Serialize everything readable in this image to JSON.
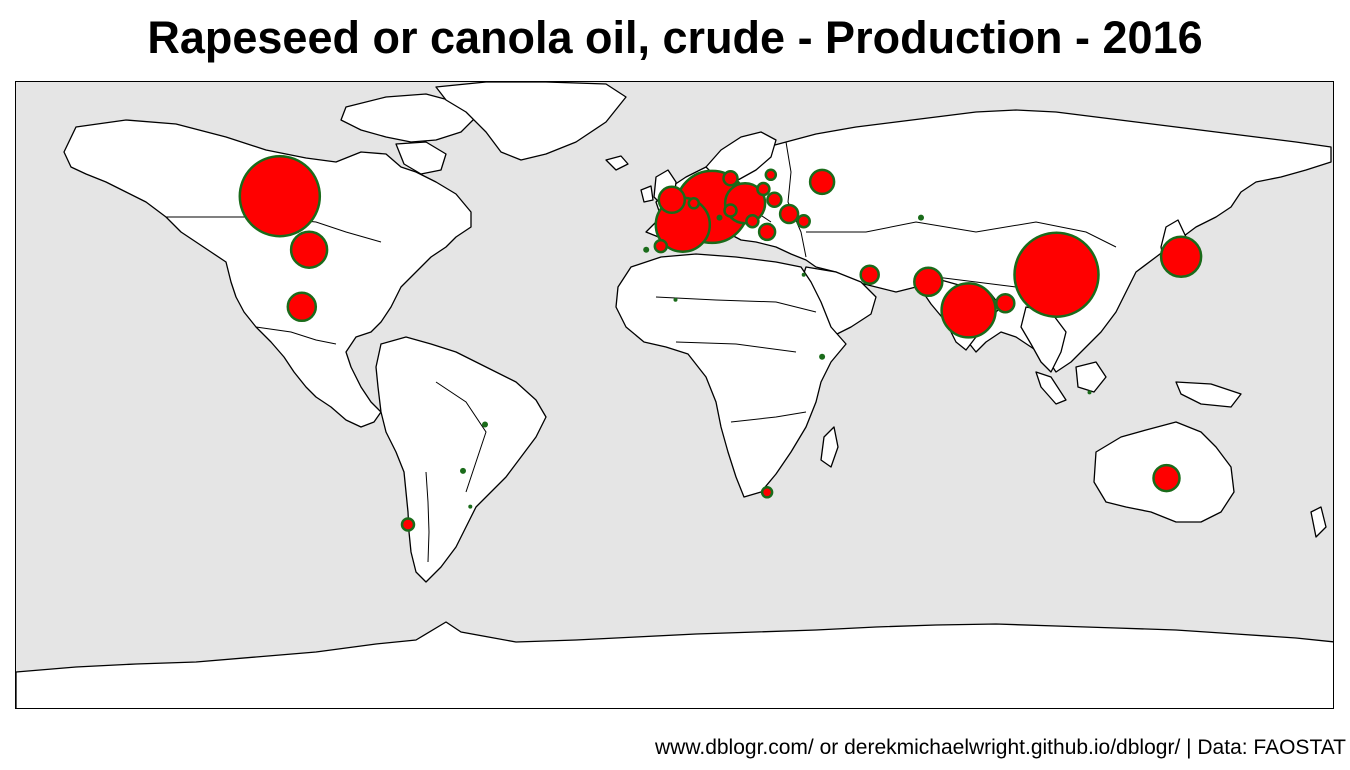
{
  "title": "Rapeseed or canola oil, crude - Production - 2016",
  "caption": "www.dblogr.com/ or derekmichaelwright.github.io/dblogr/ | Data: FAOSTAT",
  "colors": {
    "ocean": "#e5e5e5",
    "land": "#ffffff",
    "outline": "#000000",
    "bubble_fill": "#ff0000",
    "bubble_stroke": "#1a6b1a"
  },
  "chart_data": {
    "type": "map",
    "projection": "equirectangular",
    "encoding": "bubble area proportional to production",
    "points": [
      {
        "lon": -108,
        "lat": 54,
        "size": 40
      },
      {
        "lon": -100,
        "lat": 39,
        "size": 18
      },
      {
        "lon": -102,
        "lat": 23,
        "size": 14
      },
      {
        "lon": 104,
        "lat": 32,
        "size": 42
      },
      {
        "lon": 80,
        "lat": 22,
        "size": 27
      },
      {
        "lon": 69,
        "lat": 30,
        "size": 14
      },
      {
        "lon": 90,
        "lat": 24,
        "size": 9
      },
      {
        "lon": 53,
        "lat": 32,
        "size": 9
      },
      {
        "lon": 138,
        "lat": 37,
        "size": 20
      },
      {
        "lon": 134,
        "lat": -25,
        "size": 13
      },
      {
        "lon": 10,
        "lat": 51,
        "size": 36
      },
      {
        "lon": 2,
        "lat": 46,
        "size": 27
      },
      {
        "lon": 19,
        "lat": 52,
        "size": 20
      },
      {
        "lon": -1,
        "lat": 53,
        "size": 13
      },
      {
        "lon": 31,
        "lat": 49,
        "size": 9
      },
      {
        "lon": 40,
        "lat": 58,
        "size": 12
      },
      {
        "lon": 25,
        "lat": 44,
        "size": 8
      },
      {
        "lon": 15,
        "lat": 59,
        "size": 7
      },
      {
        "lon": 26,
        "lat": 60,
        "size": 5
      },
      {
        "lon": 27,
        "lat": 53,
        "size": 7
      },
      {
        "lon": 24,
        "lat": 56,
        "size": 6
      },
      {
        "lon": 35,
        "lat": 47,
        "size": 6
      },
      {
        "lon": 21,
        "lat": 47,
        "size": 6
      },
      {
        "lon": 15,
        "lat": 50,
        "size": 6
      },
      {
        "lon": -4,
        "lat": 40,
        "size": 6
      },
      {
        "lon": -73,
        "lat": -38,
        "size": 6
      },
      {
        "lon": 25,
        "lat": -29,
        "size": 5
      },
      {
        "lon": 5,
        "lat": 52,
        "size": 5
      },
      {
        "lon": 12,
        "lat": 48,
        "size": 3
      },
      {
        "lon": -58,
        "lat": -23,
        "size": 3
      },
      {
        "lon": -8,
        "lat": 39,
        "size": 3
      },
      {
        "lon": 67,
        "lat": 48,
        "size": 3
      },
      {
        "lon": 40,
        "lat": 9,
        "size": 3
      },
      {
        "lon": -52,
        "lat": -10,
        "size": 3
      },
      {
        "lon": -56,
        "lat": -33,
        "size": 2
      },
      {
        "lon": 35,
        "lat": 32,
        "size": 2
      },
      {
        "lon": 0,
        "lat": 25,
        "size": 2
      },
      {
        "lon": 113,
        "lat": -1,
        "size": 2
      }
    ]
  }
}
